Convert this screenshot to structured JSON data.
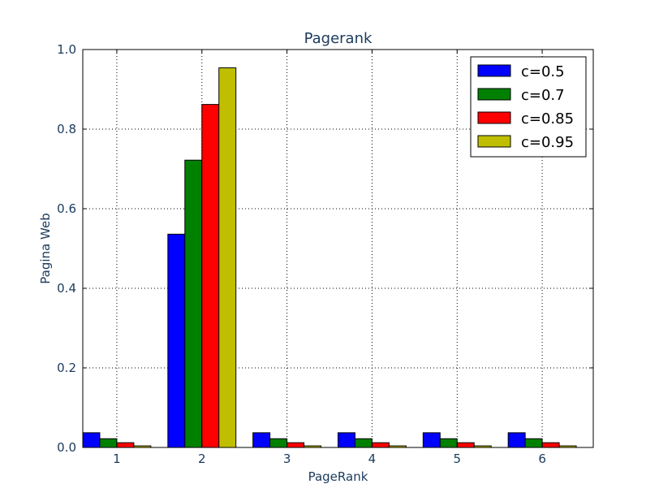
{
  "chart_data": {
    "type": "bar",
    "title": "Pagerank",
    "xlabel": "PageRank",
    "ylabel": "Pagina Web",
    "categories": [
      "1",
      "2",
      "3",
      "4",
      "5",
      "6"
    ],
    "ylim": [
      0,
      1.0
    ],
    "yticks": [
      "0.0",
      "0.2",
      "0.4",
      "0.6",
      "0.8",
      "1.0"
    ],
    "grid": true,
    "legend_position": "top-right",
    "series": [
      {
        "name": "c=0.5",
        "color": "#0000ff",
        "values": [
          0.037,
          0.536,
          0.037,
          0.037,
          0.037,
          0.037
        ]
      },
      {
        "name": "c=0.7",
        "color": "#008000",
        "values": [
          0.022,
          0.722,
          0.022,
          0.022,
          0.022,
          0.022
        ]
      },
      {
        "name": "c=0.85",
        "color": "#ff0000",
        "values": [
          0.012,
          0.862,
          0.012,
          0.012,
          0.012,
          0.012
        ]
      },
      {
        "name": "c=0.95",
        "color": "#bfbf00",
        "values": [
          0.004,
          0.954,
          0.004,
          0.004,
          0.004,
          0.004
        ]
      }
    ]
  }
}
